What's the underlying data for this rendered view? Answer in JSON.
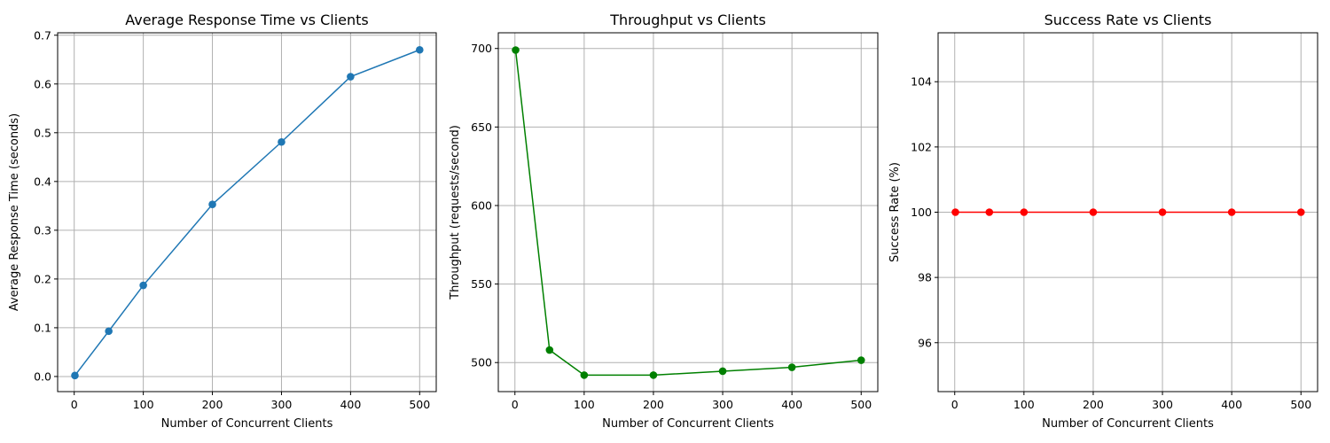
{
  "chart_data": [
    {
      "type": "line",
      "title": "Average Response Time vs Clients",
      "xlabel": "Number of Concurrent Clients",
      "ylabel": "Average Response Time (seconds)",
      "x": [
        1,
        50,
        100,
        200,
        300,
        400,
        500
      ],
      "series": [
        {
          "values": [
            0.002,
            0.093,
            0.187,
            0.353,
            0.481,
            0.615,
            0.67
          ],
          "color": "#1f77b4"
        }
      ],
      "xlim": [
        -24,
        524
      ],
      "ylim": [
        -0.031,
        0.705
      ],
      "xticks": [
        0,
        100,
        200,
        300,
        400,
        500
      ],
      "yticks": [
        0.0,
        0.1,
        0.2,
        0.3,
        0.4,
        0.5,
        0.6,
        0.7
      ],
      "xtick_labels": [
        "0",
        "100",
        "200",
        "300",
        "400",
        "500"
      ],
      "ytick_labels": [
        "0.0",
        "0.1",
        "0.2",
        "0.3",
        "0.4",
        "0.5",
        "0.6",
        "0.7"
      ],
      "grid": true
    },
    {
      "type": "line",
      "title": "Throughput vs Clients",
      "xlabel": "Number of Concurrent Clients",
      "ylabel": "Throughput (requests/second)",
      "x": [
        1,
        50,
        100,
        200,
        300,
        400,
        500
      ],
      "series": [
        {
          "values": [
            699,
            508,
            492,
            492,
            494.5,
            497,
            501.5
          ],
          "color": "#008000"
        }
      ],
      "xlim": [
        -24,
        524
      ],
      "ylim": [
        481.5,
        710
      ],
      "xticks": [
        0,
        100,
        200,
        300,
        400,
        500
      ],
      "yticks": [
        500,
        550,
        600,
        650,
        700
      ],
      "xtick_labels": [
        "0",
        "100",
        "200",
        "300",
        "400",
        "500"
      ],
      "ytick_labels": [
        "500",
        "550",
        "600",
        "650",
        "700"
      ],
      "grid": true
    },
    {
      "type": "line",
      "title": "Success Rate vs Clients",
      "xlabel": "Number of Concurrent Clients",
      "ylabel": "Success Rate (%)",
      "x": [
        1,
        50,
        100,
        200,
        300,
        400,
        500
      ],
      "series": [
        {
          "values": [
            100,
            100,
            100,
            100,
            100,
            100,
            100
          ],
          "color": "#ff0000"
        }
      ],
      "xlim": [
        -24,
        524
      ],
      "ylim": [
        94.5,
        105.5
      ],
      "xticks": [
        0,
        100,
        200,
        300,
        400,
        500
      ],
      "yticks": [
        96,
        98,
        100,
        102,
        104
      ],
      "xtick_labels": [
        "0",
        "100",
        "200",
        "300",
        "400",
        "500"
      ],
      "ytick_labels": [
        "96",
        "98",
        "100",
        "102",
        "104"
      ],
      "grid": true
    }
  ]
}
